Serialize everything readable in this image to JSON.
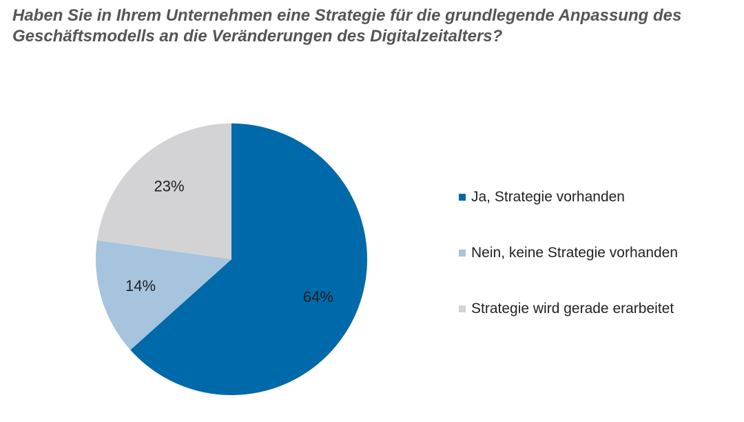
{
  "chart_data": {
    "type": "pie",
    "title": "Haben Sie in Ihrem Unternehmen eine Strategie für die grundlegende Anpassung des Geschäftsmodells an die Veränderungen des Digitalzeitalters?",
    "slices": [
      {
        "name": "Ja, Strategie vorhanden",
        "value": 64,
        "label": "64%",
        "color": "#0069A9"
      },
      {
        "name": "Nein, keine Strategie vorhanden",
        "value": 14,
        "label": "14%",
        "color": "#A6C4DE"
      },
      {
        "name": "Strategie wird gerade erarbeitet",
        "value": 23,
        "label": "23%",
        "color": "#D3D3D5"
      }
    ],
    "start_angle": "12 o'clock",
    "direction": "clockwise",
    "legend_position": "right"
  }
}
